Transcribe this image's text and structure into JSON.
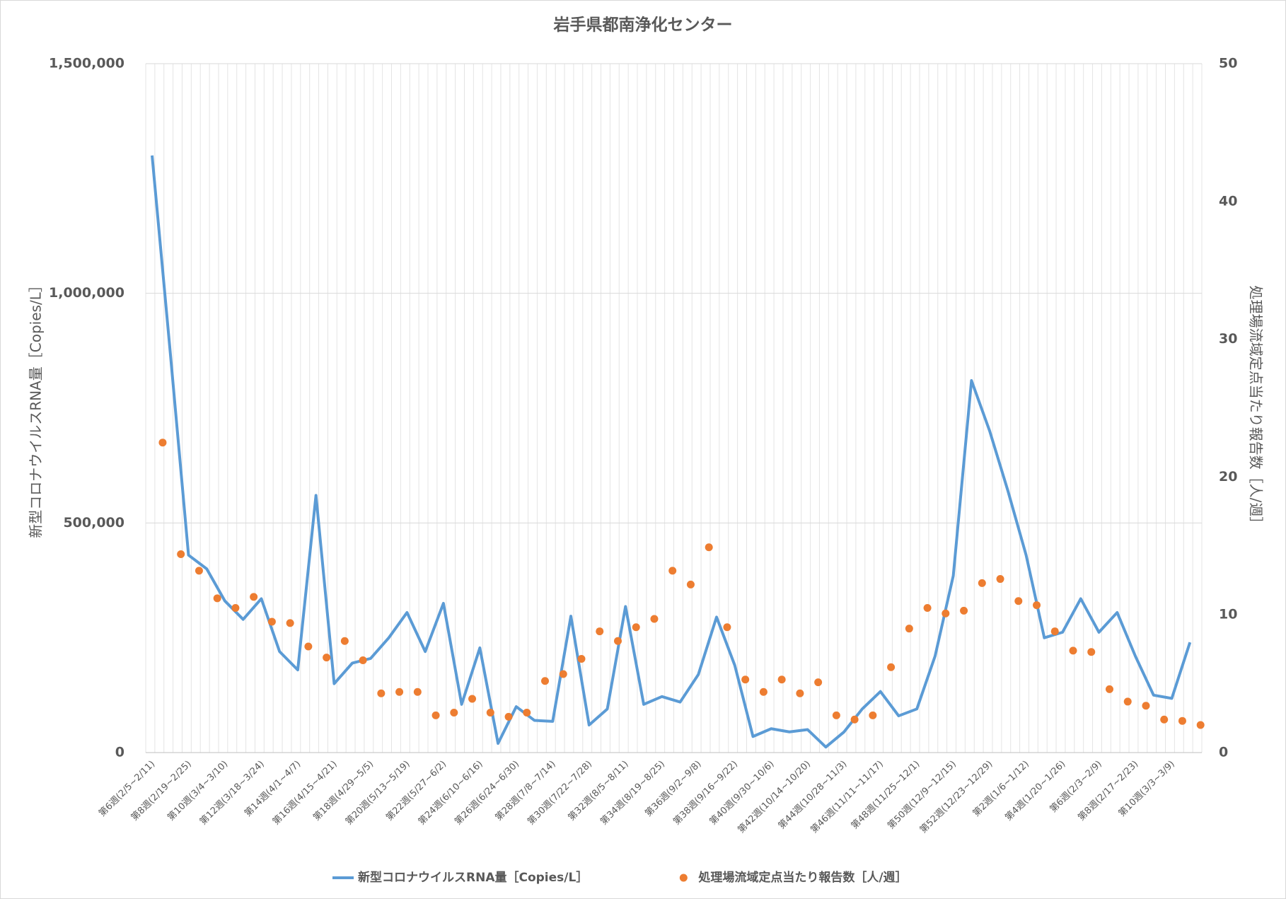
{
  "chart_data": {
    "type": "combo",
    "title": "岩手県都南浄化センター",
    "y_label": "新型コロナウイルスRNA量［Copies/L］",
    "y2_label": "処理場流域定点当たり報告数［人/週］",
    "categories": [
      "第6週(2/5~2/11)",
      null,
      "第8週(2/19~2/25)",
      null,
      "第10週(3/4~3/10)",
      null,
      "第12週(3/18~3/24)",
      null,
      "第14週(4/1~4/7)",
      null,
      "第16週(4/15~4/21)",
      null,
      "第18週(4/29~5/5)",
      null,
      "第20週(5/13~5/19)",
      null,
      "第22週(5/27~6/2)",
      null,
      "第24週(6/10~6/16)",
      null,
      "第26週(6/24~6/30)",
      null,
      "第28週(7/8~7/14)",
      null,
      "第30週(7/22~7/28)",
      null,
      "第32週(8/5~8/11)",
      null,
      "第34週(8/19~8/25)",
      null,
      "第36週(9/2~9/8)",
      null,
      "第38週(9/16~9/22)",
      null,
      "第40週(9/30~10/6)",
      null,
      "第42週(10/14~10/20)",
      null,
      "第44週(10/28~11/3)",
      null,
      "第46週(11/11~11/17)",
      null,
      "第48週(11/25~12/1)",
      null,
      "第50週(12/9~12/15)",
      null,
      "第52週(12/23~12/29)",
      null,
      "第2週(1/6~1/12)",
      null,
      "第4週(1/20~1/26)",
      null,
      "第6週(2/3~2/9)",
      null,
      "第8週(2/17~2/23)",
      null,
      "第10週(3/3~3/9)",
      null
    ],
    "series": [
      {
        "name": "新型コロナウイルスRNA量［Copies/L］",
        "type": "line",
        "color": "#5b9bd5",
        "axis": "y",
        "values": [
          1300000,
          870000,
          430000,
          400000,
          330000,
          290000,
          335000,
          220000,
          180000,
          560000,
          150000,
          195000,
          205000,
          250000,
          305000,
          220000,
          325000,
          105000,
          228000,
          20000,
          100000,
          70000,
          68000,
          297000,
          60000,
          95000,
          318000,
          105000,
          122000,
          110000,
          170000,
          295000,
          190000,
          35000,
          52000,
          45000,
          50000,
          12000,
          45000,
          95000,
          133000,
          80000,
          95000,
          210000,
          385000,
          810000,
          700000,
          570000,
          430000,
          250000,
          262000,
          335000,
          262000,
          305000,
          210000,
          125000,
          118000,
          240000
        ]
      },
      {
        "name": "処理場流域定点当たり報告数［人/週］",
        "type": "scatter",
        "color": "#ed7d31",
        "axis": "y2",
        "values": [
          22.5,
          14.4,
          13.2,
          11.2,
          10.5,
          11.3,
          9.5,
          9.4,
          7.7,
          6.9,
          8.1,
          6.7,
          4.3,
          4.4,
          4.4,
          2.7,
          2.9,
          3.9,
          2.9,
          2.6,
          2.9,
          5.2,
          5.7,
          6.8,
          8.8,
          8.1,
          9.1,
          9.7,
          13.2,
          12.2,
          14.9,
          9.1,
          5.3,
          4.4,
          5.3,
          4.3,
          5.1,
          2.7,
          2.4,
          2.7,
          6.2,
          9.0,
          10.5,
          10.1,
          10.3,
          12.3,
          12.6,
          11.0,
          10.7,
          8.8,
          7.4,
          7.3,
          4.6,
          3.7,
          3.4,
          2.4,
          2.3,
          2.0
        ]
      }
    ],
    "ylim": [
      0,
      1500000
    ],
    "yticks": [
      0,
      {
        "value": 500000,
        "label": "500,000"
      },
      {
        "value": 1000000,
        "label": "1,000,000"
      },
      {
        "value": 1500000,
        "label": "1,500,000"
      }
    ],
    "y2lim": [
      0,
      50
    ],
    "y2ticks": [
      0,
      10,
      20,
      30,
      40,
      50
    ],
    "grid": true
  }
}
